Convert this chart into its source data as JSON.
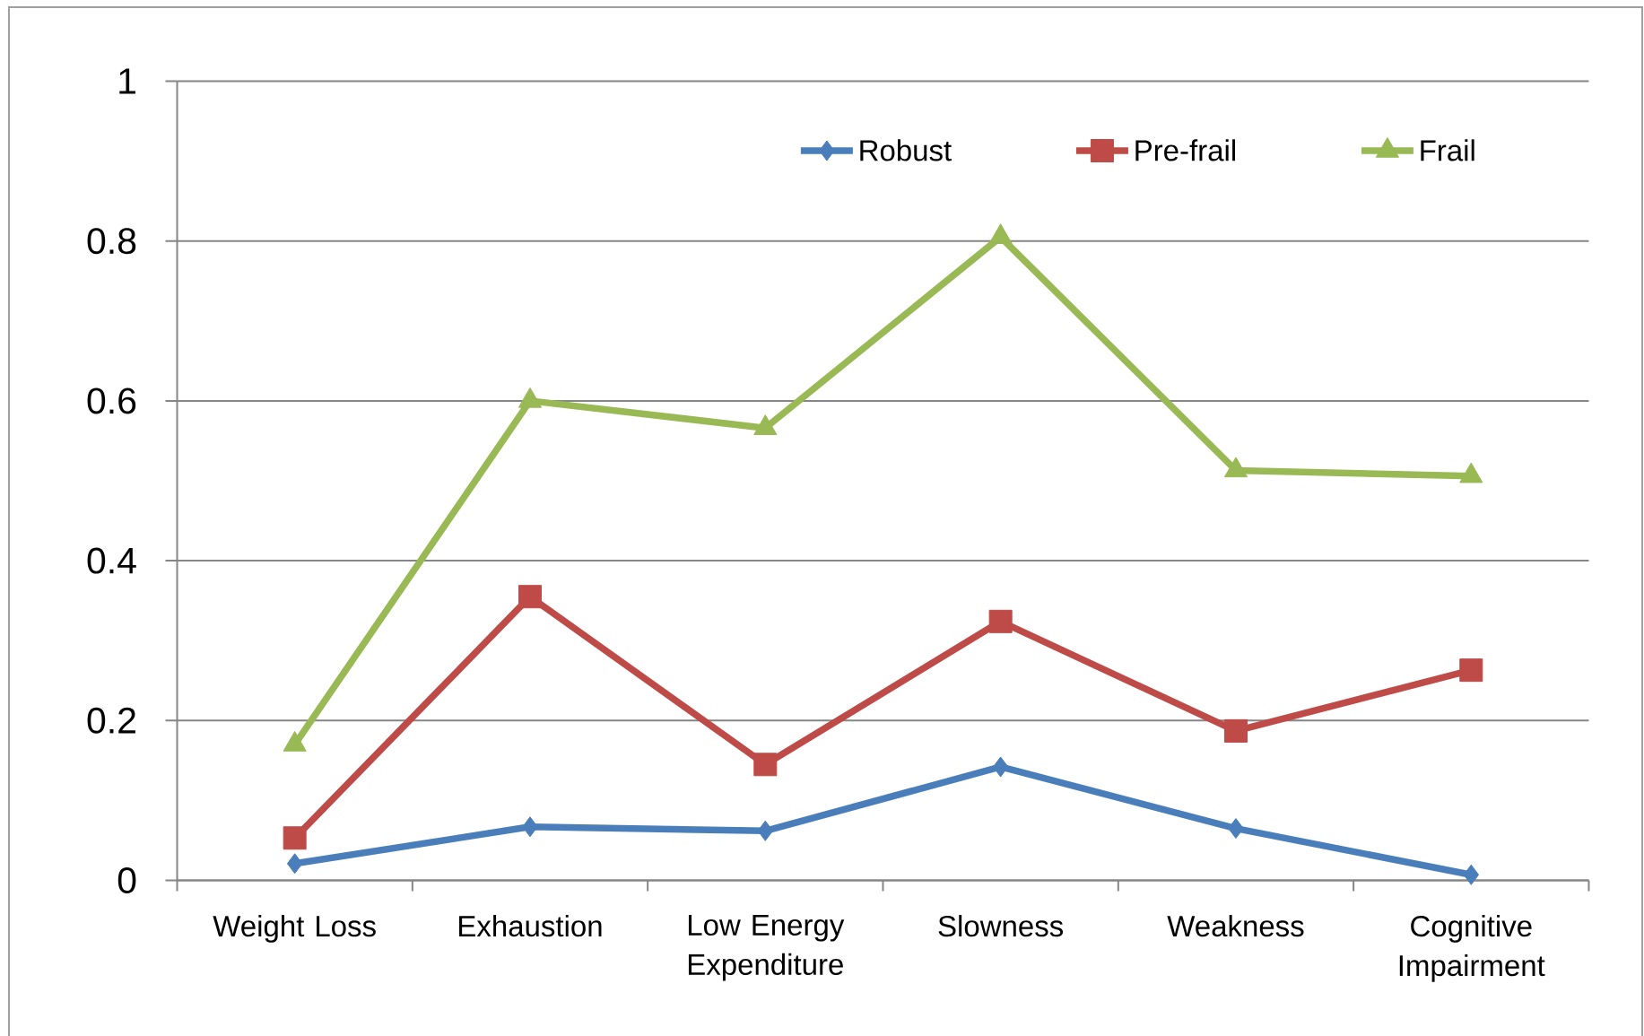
{
  "chart_data": {
    "type": "line",
    "categories": [
      "Weight Loss",
      "Exhaustion",
      "Low Energy Expenditure",
      "Slowness",
      "Weakness",
      "Cognitive Impairment"
    ],
    "series": [
      {
        "name": "Robust",
        "color": "#4a7ebb",
        "marker": "diamond",
        "values": [
          0.021,
          0.067,
          0.062,
          0.142,
          0.065,
          0.007
        ]
      },
      {
        "name": "Pre-frail",
        "color": "#be4b48",
        "marker": "square",
        "values": [
          0.053,
          0.355,
          0.145,
          0.324,
          0.187,
          0.263
        ]
      },
      {
        "name": "Frail",
        "color": "#98b954",
        "marker": "triangle",
        "values": [
          0.17,
          0.6,
          0.566,
          0.805,
          0.513,
          0.506
        ]
      }
    ],
    "ylim": [
      0,
      1
    ],
    "yticks": [
      0,
      0.2,
      0.4,
      0.6,
      0.8,
      1
    ],
    "grid": "y",
    "legend": "top right",
    "line_style": "solid"
  }
}
